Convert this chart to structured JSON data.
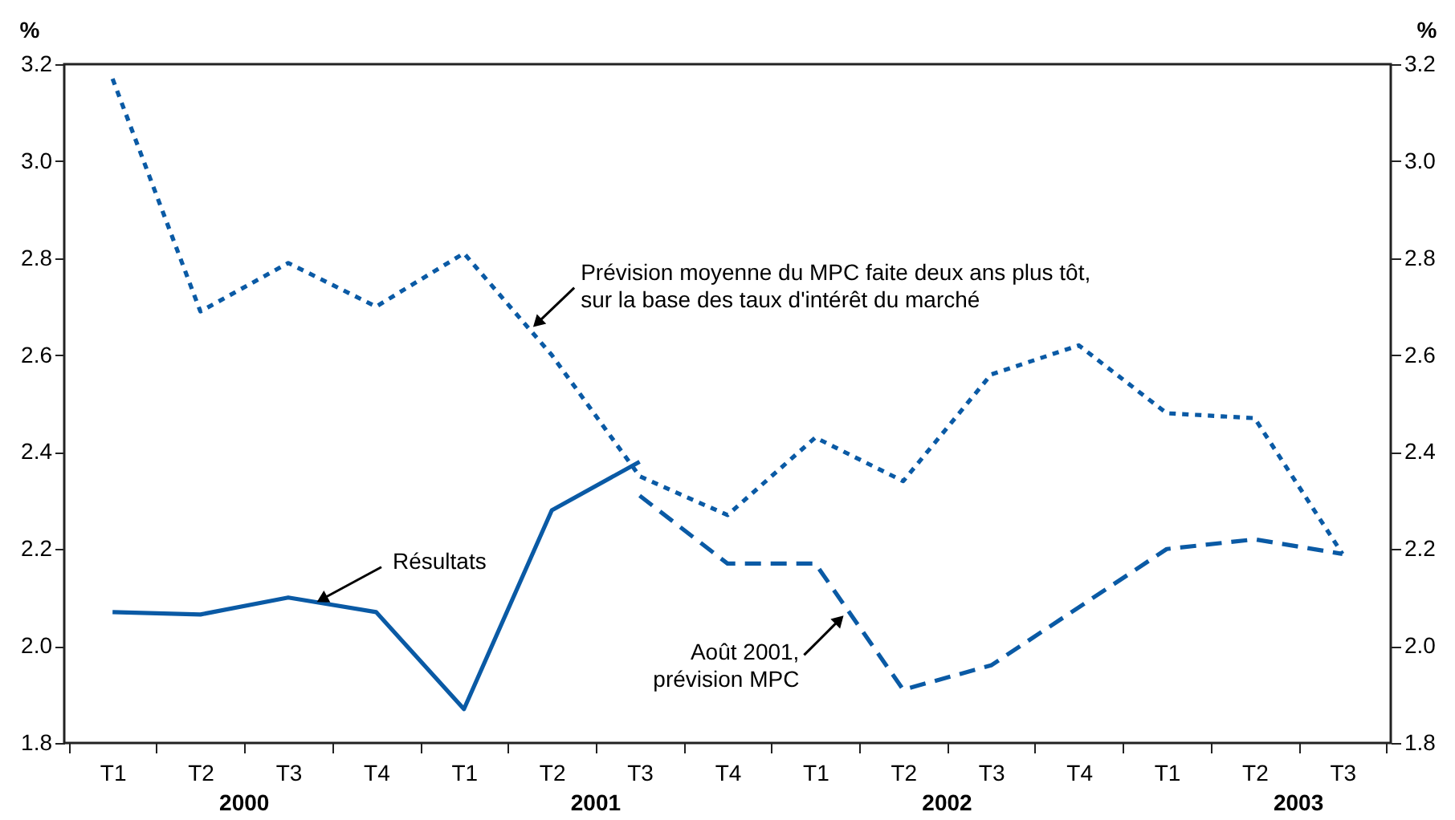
{
  "chart_data": {
    "type": "line",
    "categories": [
      "T1",
      "T2",
      "T3",
      "T4",
      "T1",
      "T2",
      "T3",
      "T4",
      "T1",
      "T2",
      "T3",
      "T4",
      "T1",
      "T2",
      "T3"
    ],
    "series": [
      {
        "name": "Résultats",
        "color": "#0a5aa5",
        "line_style": "solid",
        "values": [
          2.07,
          2.065,
          2.1,
          2.07,
          1.87,
          2.28,
          2.38,
          null,
          null,
          null,
          null,
          null,
          null,
          null,
          null
        ]
      },
      {
        "name": "Prévision moyenne du MPC faite deux ans plus tôt, sur la base des taux d'intérêt du marché",
        "color": "#0a5aa5",
        "line_style": "dotted",
        "values": [
          3.17,
          2.69,
          2.79,
          2.7,
          2.81,
          2.6,
          2.35,
          2.27,
          2.43,
          2.34,
          2.56,
          2.62,
          2.48,
          2.47,
          2.19
        ]
      },
      {
        "name": "Août 2001, prévision MPC",
        "color": "#0a5aa5",
        "line_style": "dashed",
        "values": [
          null,
          null,
          null,
          null,
          null,
          null,
          2.31,
          2.17,
          2.17,
          1.91,
          1.96,
          2.08,
          2.2,
          2.22,
          2.19
        ]
      }
    ],
    "annotations": [
      "2000",
      "2001",
      "2002",
      "2003"
    ],
    "ylabel": "%",
    "y2label": "%",
    "ylim": [
      1.8,
      3.2
    ],
    "yticks": [
      1.8,
      {
        "value": 2,
        "label": "2.0"
      },
      2.2,
      2.4,
      2.6,
      2.8,
      {
        "value": 3,
        "label": "3.0"
      },
      3.2
    ],
    "y2lim": [
      1.8,
      3.2
    ],
    "y2ticks": [
      1.8,
      {
        "value": 2,
        "label": "2.0"
      },
      2.2,
      2.4,
      2.6,
      2.8,
      {
        "value": 3,
        "label": "3.0"
      },
      3.2
    ],
    "grid": false,
    "marker": "none"
  }
}
